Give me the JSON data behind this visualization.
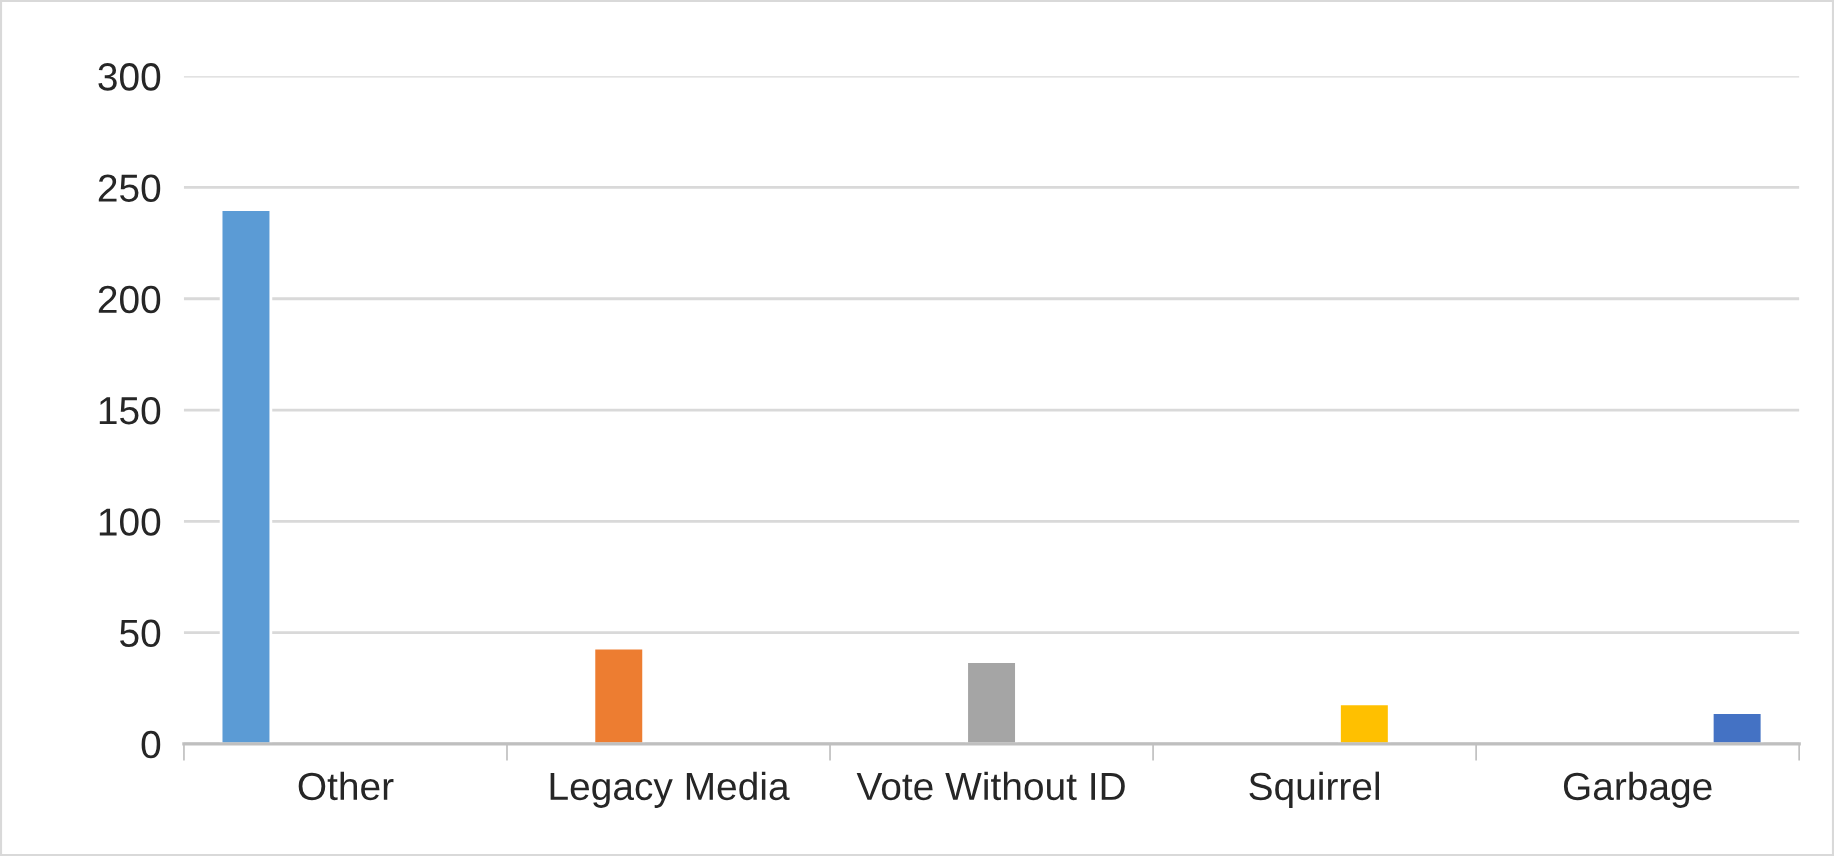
{
  "chart_data": {
    "type": "bar",
    "categories": [
      "Other",
      "Legacy Media",
      "Vote Without ID",
      "Squirrel",
      "Garbage"
    ],
    "series": [
      {
        "color": "#5b9bd5",
        "values": [
          240,
          null,
          null,
          null,
          null
        ]
      },
      {
        "color": "#ed7d31",
        "values": [
          null,
          43,
          null,
          null,
          null
        ]
      },
      {
        "color": "#a5a5a5",
        "values": [
          null,
          null,
          37,
          null,
          null
        ]
      },
      {
        "color": "#ffc000",
        "values": [
          null,
          null,
          null,
          18,
          null
        ]
      },
      {
        "color": "#4472c4",
        "values": [
          null,
          null,
          null,
          null,
          14
        ]
      }
    ],
    "ylim": [
      0,
      300
    ],
    "yticks": [
      0,
      50,
      100,
      150,
      200,
      250,
      300
    ],
    "grid": "y",
    "legend": false
  }
}
